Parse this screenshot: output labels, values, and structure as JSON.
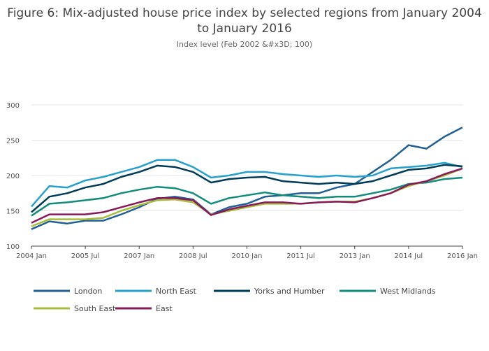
{
  "chart_data": {
    "type": "line",
    "title": "Figure 6: Mix-adjusted house price index by selected regions from January 2004 to January 2016",
    "subtitle": "Index level (Feb 2002 &#x3D; 100)",
    "xlabel": "",
    "ylabel": "",
    "x_tick_labels": [
      "2004 Jan",
      "2005 Jul",
      "2007 Jan",
      "2008 Jul",
      "2010 Jan",
      "2011 Jul",
      "2013 Jan",
      "2014 Jul",
      "2016 Jan"
    ],
    "y_ticks": [
      100,
      150,
      200,
      250,
      300
    ],
    "ylim": [
      100,
      300
    ],
    "grid": true,
    "legend_position": "bottom",
    "x": [
      "2004-01",
      "2004-07",
      "2005-01",
      "2005-07",
      "2006-01",
      "2006-07",
      "2007-01",
      "2007-07",
      "2008-01",
      "2008-07",
      "2009-01",
      "2009-07",
      "2010-01",
      "2010-07",
      "2011-01",
      "2011-07",
      "2012-01",
      "2012-07",
      "2013-01",
      "2013-07",
      "2014-01",
      "2014-07",
      "2015-01",
      "2015-07",
      "2016-01"
    ],
    "series": [
      {
        "name": "London",
        "color": "#206095",
        "values": [
          124,
          135,
          132,
          136,
          136,
          145,
          155,
          167,
          170,
          166,
          145,
          155,
          160,
          170,
          172,
          175,
          175,
          183,
          188,
          205,
          222,
          243,
          238,
          255,
          268
        ]
      },
      {
        "name": "North East",
        "color": "#27a0cc",
        "values": [
          156,
          185,
          183,
          193,
          198,
          205,
          212,
          222,
          222,
          212,
          197,
          200,
          205,
          205,
          202,
          200,
          198,
          200,
          198,
          200,
          210,
          212,
          214,
          218,
          212
        ]
      },
      {
        "name": "Yorks and Humber",
        "color": "#003c57",
        "values": [
          148,
          170,
          175,
          183,
          188,
          198,
          205,
          214,
          212,
          205,
          190,
          195,
          197,
          198,
          192,
          190,
          188,
          190,
          188,
          192,
          200,
          208,
          210,
          215,
          213
        ]
      },
      {
        "name": "West Midlands",
        "color": "#118c7b",
        "values": [
          143,
          160,
          162,
          165,
          168,
          175,
          180,
          184,
          182,
          175,
          160,
          168,
          172,
          176,
          172,
          170,
          168,
          170,
          170,
          175,
          180,
          188,
          190,
          195,
          197
        ]
      },
      {
        "name": "South East",
        "color": "#a8bd3a",
        "values": [
          128,
          138,
          138,
          138,
          140,
          150,
          158,
          165,
          166,
          162,
          145,
          150,
          155,
          160,
          160,
          160,
          162,
          163,
          163,
          168,
          175,
          185,
          192,
          200,
          210
        ]
      },
      {
        "name": "East",
        "color": "#871a5b",
        "values": [
          133,
          145,
          145,
          145,
          148,
          155,
          162,
          168,
          168,
          165,
          144,
          152,
          157,
          162,
          162,
          160,
          162,
          163,
          162,
          168,
          175,
          187,
          192,
          202,
          210
        ]
      }
    ]
  }
}
